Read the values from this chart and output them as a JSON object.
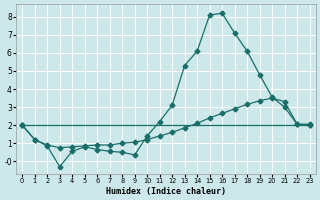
{
  "xlabel": "Humidex (Indice chaleur)",
  "bg_color": "#cce8ea",
  "grid_color": "#ffffff",
  "line_color": "#1a6e6a",
  "xlim": [
    -0.5,
    23.5
  ],
  "ylim": [
    -0.7,
    8.7
  ],
  "x_ticks": [
    0,
    1,
    2,
    3,
    4,
    5,
    6,
    7,
    8,
    9,
    10,
    11,
    12,
    13,
    14,
    15,
    16,
    17,
    18,
    19,
    20,
    21,
    22,
    23
  ],
  "y_ticks": [
    0,
    1,
    2,
    3,
    4,
    5,
    6,
    7,
    8
  ],
  "y_tick_labels": [
    "-0",
    "1",
    "2",
    "3",
    "4",
    "5",
    "6",
    "7",
    "8"
  ],
  "line1_x": [
    0,
    1,
    2,
    3,
    4,
    5,
    6,
    7,
    8,
    9,
    10,
    11,
    12,
    13,
    14,
    15,
    16,
    17,
    18,
    19,
    20,
    21,
    22,
    23
  ],
  "line1_y": [
    2.0,
    1.2,
    0.85,
    -0.3,
    0.55,
    0.8,
    0.65,
    0.55,
    0.5,
    0.35,
    1.4,
    2.2,
    3.1,
    5.3,
    6.1,
    8.1,
    8.2,
    7.1,
    6.1,
    4.8,
    3.55,
    3.0,
    2.05,
    2.0
  ],
  "line2_x": [
    0,
    1,
    2,
    3,
    4,
    5,
    6,
    7,
    8,
    9,
    10,
    11,
    12,
    13,
    14,
    15,
    16,
    17,
    18,
    19,
    20,
    21,
    22,
    23
  ],
  "line2_y": [
    2.0,
    1.2,
    0.9,
    0.75,
    0.8,
    0.85,
    0.9,
    0.9,
    1.0,
    1.05,
    1.2,
    1.4,
    1.6,
    1.85,
    2.1,
    2.4,
    2.65,
    2.9,
    3.15,
    3.35,
    3.5,
    3.3,
    2.05,
    2.05
  ],
  "line3_x": [
    0,
    23
  ],
  "line3_y": [
    2.0,
    2.0
  ],
  "marker": "D",
  "marker_size": 2.5,
  "linewidth": 0.9
}
